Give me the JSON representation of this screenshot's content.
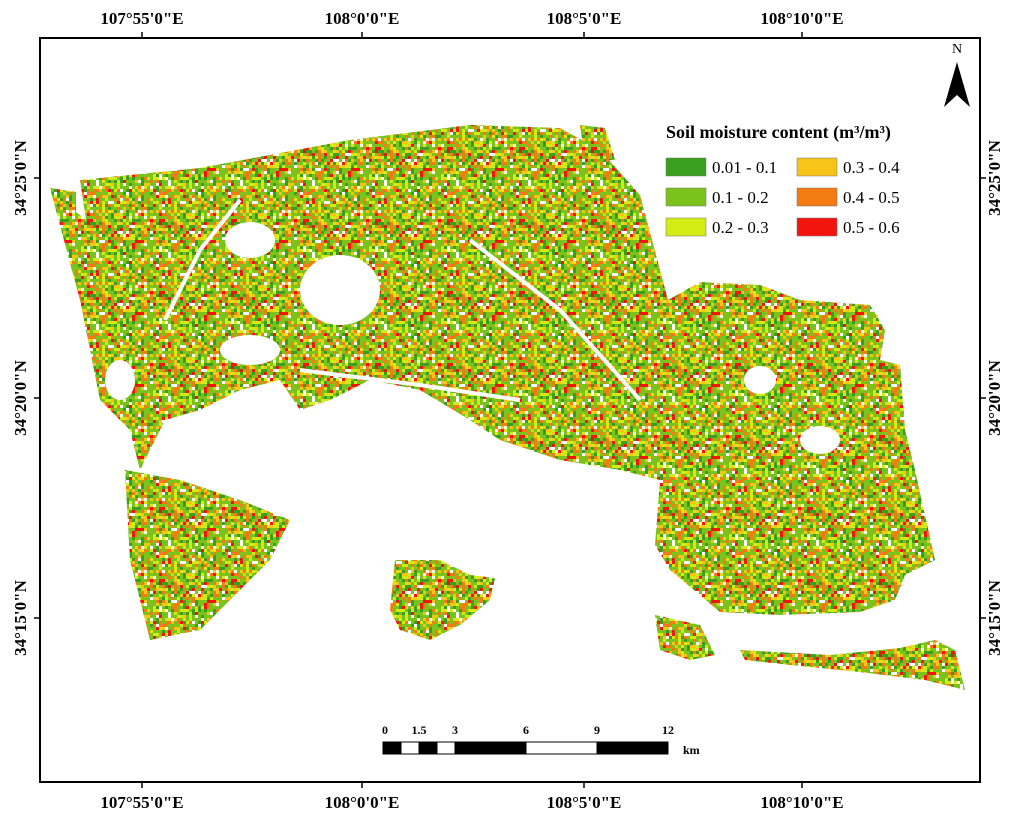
{
  "map": {
    "top_labels": [
      "107°55'0\"E",
      "108°0'0\"E",
      "108°5'0\"E",
      "108°10'0\"E"
    ],
    "bottom_labels": [
      "107°55'0\"E",
      "108°0'0\"E",
      "108°5'0\"E",
      "108°10'0\"E"
    ],
    "left_labels": [
      "34°25'0\"N",
      "34°20'0\"N",
      "34°15'0\"N"
    ],
    "right_labels": [
      "34°25'0\"N",
      "34°20'0\"N",
      "34°15'0\"N"
    ],
    "north": "N",
    "legend": {
      "title": "Soil moisture content (m³/m³)",
      "items": [
        {
          "label": "0.01 - 0.1",
          "color": "#3a9e1e"
        },
        {
          "label": "0.1 - 0.2",
          "color": "#7cc21c"
        },
        {
          "label": "0.2 - 0.3",
          "color": "#d3ec14"
        },
        {
          "label": "0.3 - 0.4",
          "color": "#f7c41a"
        },
        {
          "label": "0.4 - 0.5",
          "color": "#f47a12"
        },
        {
          "label": "0.5 - 0.6",
          "color": "#f2140f"
        }
      ]
    },
    "scale_bar": {
      "labels": [
        "0",
        "1.5",
        "3",
        "6",
        "9",
        "12"
      ],
      "unit": "km"
    }
  }
}
